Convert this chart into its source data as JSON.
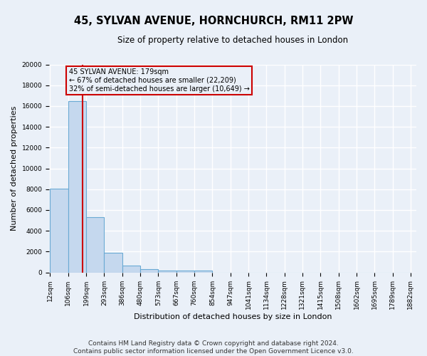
{
  "title": "45, SYLVAN AVENUE, HORNCHURCH, RM11 2PW",
  "subtitle": "Size of property relative to detached houses in London",
  "xlabel": "Distribution of detached houses by size in London",
  "ylabel": "Number of detached properties",
  "footer_line1": "Contains HM Land Registry data © Crown copyright and database right 2024.",
  "footer_line2": "Contains public sector information licensed under the Open Government Licence v3.0.",
  "bin_edges": [
    12,
    106,
    199,
    293,
    386,
    480,
    573,
    667,
    760,
    854,
    947,
    1041,
    1134,
    1228,
    1321,
    1415,
    1508,
    1602,
    1695,
    1789,
    1882
  ],
  "bar_heights": [
    8050,
    16500,
    5300,
    1900,
    650,
    310,
    210,
    180,
    150,
    0,
    0,
    0,
    0,
    0,
    0,
    0,
    0,
    0,
    0,
    0
  ],
  "bar_color": "#c5d8ee",
  "bar_edgecolor": "#6aaad4",
  "redline_x": 179,
  "redline_color": "#cc0000",
  "annotation_text": "45 SYLVAN AVENUE: 179sqm\n← 67% of detached houses are smaller (22,209)\n32% of semi-detached houses are larger (10,649) →",
  "annotation_box_color": "#cc0000",
  "ylim": [
    0,
    20000
  ],
  "yticks": [
    0,
    2000,
    4000,
    6000,
    8000,
    10000,
    12000,
    14000,
    16000,
    18000,
    20000
  ],
  "bg_color": "#eaf0f8",
  "grid_color": "#ffffff",
  "title_fontsize": 10.5,
  "subtitle_fontsize": 8.5,
  "axis_label_fontsize": 8,
  "tick_fontsize": 6.5,
  "footer_fontsize": 6.5
}
